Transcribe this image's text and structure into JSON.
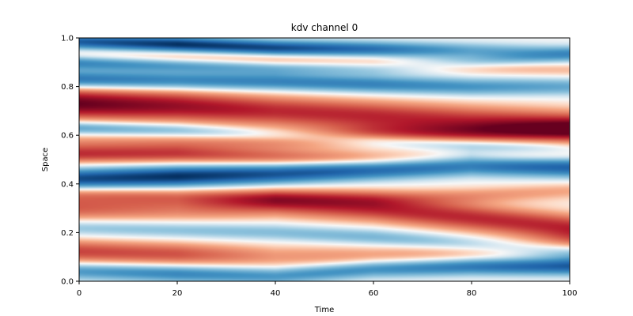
{
  "chart_data": {
    "type": "heatmap",
    "title": "kdv channel 0",
    "xlabel": "Time",
    "ylabel": "Space",
    "xlim": [
      0,
      100
    ],
    "ylim": [
      0.0,
      1.0
    ],
    "x_ticks": [
      "0",
      "20",
      "40",
      "60",
      "80",
      "100"
    ],
    "y_ticks": [
      "0.0",
      "0.2",
      "0.4",
      "0.6",
      "0.8",
      "1.0"
    ],
    "colormap": "RdBu_r",
    "value_range": [
      -1,
      1
    ],
    "colors": {
      "neg": "#053061",
      "zero": "#f7f7f7",
      "pos": "#67001f"
    },
    "grid": false,
    "bands": [
      {
        "pos": [
          0.985,
          0.975,
          0.96,
          0.955,
          0.95,
          0.94
        ],
        "amp": [
          -0.8,
          -1.0,
          -0.9,
          -0.7,
          -0.4,
          -0.3
        ],
        "width": 0.022
      },
      {
        "pos": [
          0.93,
          0.92,
          0.91,
          0.9,
          0.88,
          0.87
        ],
        "amp": [
          0.2,
          0.3,
          0.35,
          0.3,
          0.25,
          0.2
        ],
        "width": 0.02
      },
      {
        "pos": [
          0.9,
          0.89,
          0.88,
          0.88,
          0.9,
          0.93
        ],
        "amp": [
          -0.6,
          -0.5,
          -0.4,
          -0.3,
          -0.3,
          -0.3
        ],
        "width": 0.022
      },
      {
        "pos": [
          0.83,
          0.825,
          0.82,
          0.81,
          0.8,
          0.8
        ],
        "amp": [
          -0.7,
          -0.6,
          -0.6,
          -0.6,
          -0.5,
          -0.4
        ],
        "width": 0.025
      },
      {
        "pos": [
          0.73,
          0.72,
          0.7,
          0.68,
          0.66,
          0.64
        ],
        "amp": [
          1.0,
          0.85,
          0.7,
          0.7,
          0.65,
          0.7
        ],
        "width": 0.045
      },
      {
        "pos": [
          0.63,
          0.62,
          0.6,
          0.58,
          0.56,
          0.54
        ],
        "amp": [
          -0.5,
          -0.4,
          -0.3,
          -0.35,
          -0.3,
          -0.25
        ],
        "width": 0.02
      },
      {
        "pos": [
          0.57,
          0.57,
          0.58,
          0.6,
          0.61,
          0.62
        ],
        "amp": [
          0.3,
          0.35,
          0.4,
          0.5,
          0.55,
          0.55
        ],
        "width": 0.03
      },
      {
        "pos": [
          0.52,
          0.52,
          0.51,
          0.5,
          0.5,
          0.52
        ],
        "amp": [
          0.6,
          0.55,
          0.45,
          0.4,
          0.3,
          0.3
        ],
        "width": 0.025
      },
      {
        "pos": [
          0.42,
          0.43,
          0.44,
          0.46,
          0.48,
          0.47
        ],
        "amp": [
          -0.9,
          -1.0,
          -0.85,
          -0.8,
          -0.8,
          -0.8
        ],
        "width": 0.03
      },
      {
        "pos": [
          0.36,
          0.35,
          0.34,
          0.34,
          0.35,
          0.37
        ],
        "amp": [
          0.3,
          0.3,
          0.35,
          0.3,
          0.3,
          0.25
        ],
        "width": 0.025
      },
      {
        "pos": [
          0.3,
          0.3,
          0.32,
          0.3,
          0.26,
          0.22
        ],
        "amp": [
          0.5,
          0.4,
          0.6,
          0.7,
          0.7,
          0.7
        ],
        "width": 0.04
      },
      {
        "pos": [
          0.22,
          0.21,
          0.2,
          0.18,
          0.15,
          0.12
        ],
        "amp": [
          -0.3,
          -0.3,
          -0.3,
          -0.35,
          -0.35,
          -0.4
        ],
        "width": 0.025
      },
      {
        "pos": [
          0.12,
          0.11,
          0.1,
          0.1,
          0.12,
          0.15
        ],
        "amp": [
          0.6,
          0.55,
          0.3,
          0.3,
          0.3,
          0.3
        ],
        "width": 0.035
      },
      {
        "pos": [
          0.04,
          0.03,
          0.02,
          0.05,
          0.06,
          0.06
        ],
        "amp": [
          -0.5,
          -0.6,
          -0.5,
          -0.6,
          -0.7,
          -0.8
        ],
        "width": 0.025
      }
    ]
  }
}
